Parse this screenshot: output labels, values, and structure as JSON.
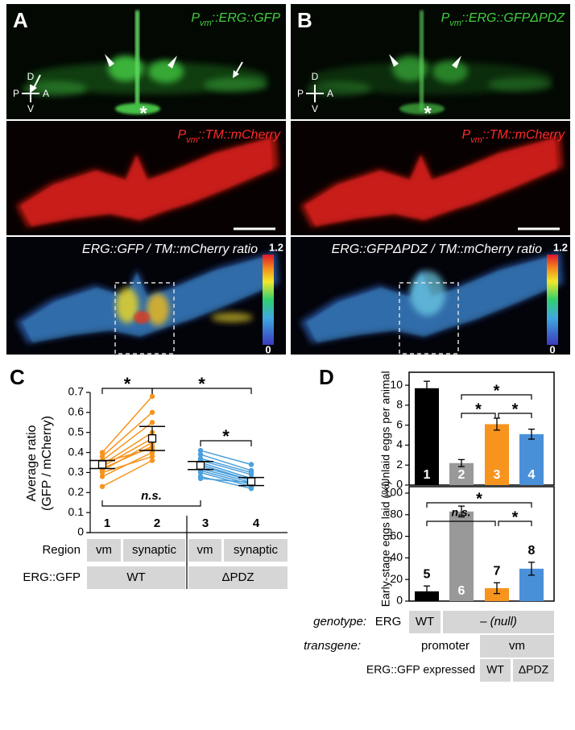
{
  "panels": {
    "A": {
      "letter": "A",
      "gfp_label": [
        "P",
        "vm",
        "::ERG::GFP"
      ],
      "mcherry_label": [
        "P",
        "vm",
        "::TM::mCherry"
      ],
      "ratio_label": "ERG::GFP / TM::mCherry ratio",
      "orientation": {
        "d": "D",
        "v": "V",
        "p": "P",
        "a": "A"
      },
      "midline_marker": "*",
      "colorbar_max": 1.2,
      "colorbar_min": 0
    },
    "B": {
      "letter": "B",
      "gfp_label": [
        "P",
        "vm",
        "::ERG::GFPΔPDZ"
      ],
      "mcherry_label": [
        "P",
        "vm",
        "::TM::mCherry"
      ],
      "ratio_label": "ERG::GFPΔPDZ / TM::mCherry ratio",
      "orientation": {
        "d": "D",
        "v": "V",
        "p": "P",
        "a": "A"
      },
      "midline_marker": "*",
      "colorbar_max": 1.2,
      "colorbar_min": 0
    }
  },
  "chart_data": [
    {
      "type": "paired-dot",
      "letter": "C",
      "ylabel": [
        "Average ratio",
        "(GFP / mCherry)"
      ],
      "categories": [
        "1",
        "2",
        "3",
        "4"
      ],
      "ylim": [
        0,
        0.7
      ],
      "yticks": [
        0,
        0.1,
        0.2,
        0.3,
        0.4,
        0.5,
        0.6,
        0.7
      ],
      "groups": [
        {
          "color": "#f7941d",
          "pairs": [
            [
              0.23,
              0.36
            ],
            [
              0.28,
              0.4
            ],
            [
              0.31,
              0.45
            ],
            [
              0.33,
              0.47
            ],
            [
              0.34,
              0.5
            ],
            [
              0.35,
              0.42
            ],
            [
              0.36,
              0.55
            ],
            [
              0.38,
              0.6
            ],
            [
              0.4,
              0.68
            ],
            [
              0.32,
              0.43
            ],
            [
              0.3,
              0.38
            ]
          ],
          "mean": [
            0.34,
            0.47
          ],
          "error": [
            0.02,
            0.06
          ]
        },
        {
          "color": "#4a9fdc",
          "pairs": [
            [
              0.41,
              0.34
            ],
            [
              0.39,
              0.31
            ],
            [
              0.37,
              0.3
            ],
            [
              0.36,
              0.29
            ],
            [
              0.35,
              0.27
            ],
            [
              0.34,
              0.26
            ],
            [
              0.33,
              0.26
            ],
            [
              0.32,
              0.25
            ],
            [
              0.31,
              0.24
            ],
            [
              0.3,
              0.23
            ],
            [
              0.28,
              0.22
            ],
            [
              0.27,
              0.25
            ]
          ],
          "mean": [
            0.335,
            0.255
          ],
          "error": [
            0.02,
            0.02
          ]
        }
      ],
      "significance": [
        "*",
        "*",
        "*",
        "n.s."
      ],
      "table": {
        "row_labels": [
          "Region",
          "ERG::GFP"
        ],
        "region": [
          "vm",
          "synaptic",
          "vm",
          "synaptic"
        ],
        "construct": [
          "WT",
          "ΔPDZ"
        ]
      }
    },
    {
      "type": "bar",
      "letter": "D",
      "ylabel": "Unlaid eggs per animal",
      "categories": [
        "1",
        "2",
        "3",
        "4"
      ],
      "values": [
        9.7,
        2.2,
        6.1,
        5.1
      ],
      "error": [
        0.7,
        0.35,
        0.6,
        0.5
      ],
      "colors": [
        "#000000",
        "#999999",
        "#f7941d",
        "#4a90d9"
      ],
      "ylim": [
        0,
        11.3
      ],
      "yticks": [
        0,
        2,
        4,
        6,
        8,
        10
      ],
      "significance": [
        "*",
        "*",
        "*"
      ]
    },
    {
      "type": "bar",
      "ylabel": "Early-stage eggs laid (%)",
      "categories": [
        "5",
        "6",
        "7",
        "8"
      ],
      "values": [
        9,
        83,
        12,
        30
      ],
      "error": [
        5,
        5,
        5,
        6
      ],
      "colors": [
        "#000000",
        "#999999",
        "#f7941d",
        "#4a90d9"
      ],
      "ylim": [
        0,
        106
      ],
      "yticks": [
        0,
        20,
        40,
        60,
        80,
        100
      ],
      "significance": [
        "*",
        "n.s.",
        "*"
      ]
    }
  ],
  "panel_d_table": {
    "genotype": {
      "label": "genotype:",
      "gene": "ERG",
      "cells": [
        "WT",
        "– (null)"
      ]
    },
    "transgene": {
      "label": "transgene:",
      "promoter": "promoter",
      "cells": [
        "vm"
      ]
    },
    "expressed": {
      "label": "ERG::GFP expressed",
      "cells": [
        "WT",
        "ΔPDZ"
      ]
    }
  }
}
